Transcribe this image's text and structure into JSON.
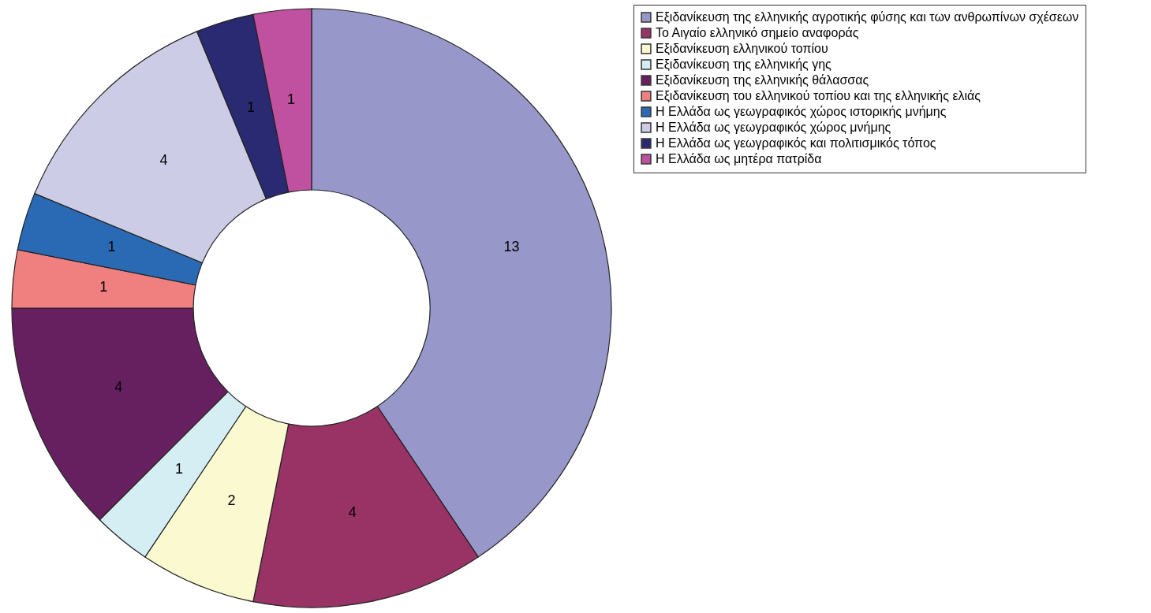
{
  "chart_data": {
    "type": "donut",
    "categories": [
      "Εξιδανίκευση της ελληνικής αγροτικής φύσης και των ανθρωπίνων σχέσεων",
      "Το Αιγαίο ελληνικό σημείο αναφοράς",
      "Εξιδανίκευση ελληνικού τοπίου",
      "Εξιδανίκευση της ελληνικής γης",
      "Εξιδανίκευση της ελληνικής θάλασσας",
      "Εξιδανίκευση του ελληνικού τοπίου και της ελληνικής ελιάς",
      "Η Ελλάδα ως γεωγραφικός χώρος ιστορικής μνήμης",
      "Η Ελλάδα ως γεωγραφικός χώρος  μνήμης",
      "Η Ελλάδα ως γεωγραφικός και πολιτισμικός τόπος",
      "Η Ελλάδα ως μητέρα πατρίδα"
    ],
    "values": [
      13,
      4,
      2,
      1,
      4,
      1,
      1,
      4,
      1,
      1
    ],
    "colors": [
      "#9797c9",
      "#993366",
      "#fbf9d0",
      "#d5eef3",
      "#662060",
      "#f08080",
      "#2a6ab5",
      "#cccce6",
      "#2a2a72",
      "#c050a0"
    ],
    "data_labels": true,
    "legend": "right"
  }
}
